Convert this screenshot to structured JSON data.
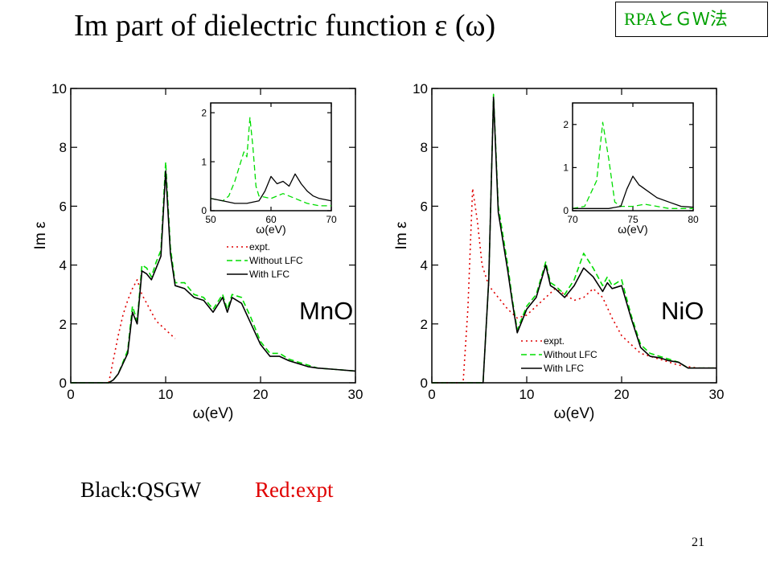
{
  "slide": {
    "title": "Im part of dielectric function ε (ω)",
    "tag": "RPAとＧＷ法",
    "caption_black": "Black:QSGW",
    "caption_red": "Red:expt",
    "page_number": "21"
  },
  "colors": {
    "black": "#000000",
    "green": "#00dd00",
    "red": "#e00000"
  },
  "chart_data": [
    {
      "type": "line",
      "label": "MnO",
      "xlabel": "ω(eV)",
      "ylabel": "Im ε",
      "xlim": [
        0,
        30
      ],
      "ylim": [
        0,
        10
      ],
      "xticks": [
        0,
        10,
        20,
        30
      ],
      "yticks": [
        0,
        2,
        4,
        6,
        8,
        10
      ],
      "legend": [
        "expt.",
        "Without LFC",
        "With LFC"
      ],
      "series": [
        {
          "name": "expt.",
          "style": "dotted",
          "color": "#e00000",
          "x": [
            4,
            4.5,
            5,
            5.5,
            6,
            6.5,
            7,
            7.5,
            8,
            8.5,
            9,
            10,
            11
          ],
          "y": [
            0,
            0.8,
            1.6,
            2.3,
            2.8,
            3.2,
            3.5,
            3.0,
            2.7,
            2.4,
            2.1,
            1.8,
            1.5
          ]
        },
        {
          "name": "Without LFC",
          "style": "dashed",
          "color": "#00dd00",
          "x": [
            0,
            4,
            4.5,
            5,
            6,
            6.5,
            7,
            7.5,
            8,
            8.5,
            9,
            9.5,
            10,
            10.5,
            11,
            12,
            13,
            14,
            15,
            16,
            16.5,
            17,
            18,
            19,
            20,
            21,
            22,
            23,
            24,
            25,
            26,
            28,
            30
          ],
          "y": [
            0,
            0,
            0.1,
            0.3,
            1.1,
            2.6,
            2.1,
            4.0,
            3.9,
            3.6,
            4.1,
            4.5,
            7.5,
            4.6,
            3.4,
            3.4,
            3.0,
            2.9,
            2.5,
            3.0,
            2.5,
            3.0,
            2.9,
            2.2,
            1.4,
            1.0,
            1.0,
            0.8,
            0.7,
            0.6,
            0.5,
            0.45,
            0.4
          ]
        },
        {
          "name": "With LFC",
          "style": "solid",
          "color": "#000000",
          "x": [
            0,
            4,
            4.5,
            5,
            6,
            6.5,
            7,
            7.5,
            8,
            8.5,
            9,
            9.5,
            10,
            10.5,
            11,
            12,
            13,
            14,
            15,
            16,
            16.5,
            17,
            18,
            19,
            20,
            21,
            22,
            23,
            24,
            25,
            26,
            28,
            30
          ],
          "y": [
            0,
            0,
            0.1,
            0.3,
            1.0,
            2.4,
            2.0,
            3.8,
            3.7,
            3.5,
            3.9,
            4.3,
            7.2,
            4.4,
            3.3,
            3.2,
            2.9,
            2.8,
            2.4,
            2.9,
            2.4,
            2.9,
            2.7,
            2.0,
            1.3,
            0.9,
            0.9,
            0.75,
            0.65,
            0.55,
            0.5,
            0.45,
            0.4
          ]
        }
      ],
      "inset": {
        "xlabel": "ω(eV)",
        "xlim": [
          50,
          70
        ],
        "ylim": [
          0,
          2.2
        ],
        "xticks": [
          50,
          60,
          70
        ],
        "yticks": [
          0,
          1,
          2
        ],
        "series": [
          {
            "name": "Without LFC",
            "style": "dashed",
            "color": "#00dd00",
            "x": [
              50,
              52,
              53,
              54,
              55,
              55.5,
              56,
              56.5,
              57,
              57.5,
              58,
              60,
              62,
              64,
              66,
              68,
              70
            ],
            "y": [
              0.25,
              0.2,
              0.3,
              0.6,
              1.0,
              1.2,
              1.1,
              1.9,
              1.3,
              0.5,
              0.3,
              0.25,
              0.35,
              0.25,
              0.15,
              0.1,
              0.1
            ]
          },
          {
            "name": "With LFC",
            "style": "solid",
            "color": "#000000",
            "x": [
              50,
              52,
              54,
              56,
              58,
              59,
              60,
              61,
              62,
              63,
              64,
              65,
              66,
              67,
              68,
              70
            ],
            "y": [
              0.25,
              0.2,
              0.15,
              0.15,
              0.2,
              0.4,
              0.7,
              0.55,
              0.6,
              0.5,
              0.75,
              0.55,
              0.4,
              0.3,
              0.25,
              0.2
            ]
          }
        ]
      }
    },
    {
      "type": "line",
      "label": "NiO",
      "xlabel": "ω(eV)",
      "ylabel": "Im ε",
      "xlim": [
        0,
        30
      ],
      "ylim": [
        0,
        10
      ],
      "xticks": [
        0,
        10,
        20,
        30
      ],
      "yticks": [
        0,
        2,
        4,
        6,
        8,
        10
      ],
      "legend": [
        "expt.",
        "Without LFC",
        "With LFC"
      ],
      "series": [
        {
          "name": "expt.",
          "style": "dotted",
          "color": "#e00000",
          "x": [
            0,
            3.3,
            3.8,
            4.3,
            4.8,
            5.3,
            6,
            7,
            8,
            9,
            10,
            12,
            13,
            14,
            15,
            16,
            17,
            18,
            19,
            20,
            22,
            24,
            26,
            28,
            30
          ],
          "y": [
            0,
            0,
            2.5,
            6.6,
            5.5,
            4.0,
            3.3,
            2.9,
            2.5,
            2.2,
            2.3,
            2.9,
            3.2,
            3.0,
            2.8,
            2.9,
            3.2,
            2.9,
            2.2,
            1.6,
            1.0,
            0.8,
            0.6,
            0.5,
            0.5
          ]
        },
        {
          "name": "Without LFC",
          "style": "dashed",
          "color": "#00dd00",
          "x": [
            0,
            5.4,
            6,
            6.5,
            7,
            7.5,
            8,
            8.5,
            9,
            10,
            11,
            12,
            12.5,
            13,
            14,
            15,
            16,
            17,
            18,
            18.5,
            19,
            20,
            21,
            22,
            23,
            24,
            25,
            26,
            27,
            30
          ],
          "y": [
            0,
            0,
            3.5,
            9.8,
            6.0,
            5.0,
            4.0,
            2.8,
            1.8,
            2.6,
            3.0,
            4.1,
            3.4,
            3.3,
            3.0,
            3.5,
            4.4,
            3.9,
            3.3,
            3.6,
            3.3,
            3.5,
            2.3,
            1.3,
            1.0,
            0.9,
            0.8,
            0.7,
            0.5,
            0.5
          ]
        },
        {
          "name": "With LFC",
          "style": "solid",
          "color": "#000000",
          "x": [
            0,
            5.4,
            6,
            6.5,
            7,
            7.5,
            8,
            8.5,
            9,
            10,
            11,
            12,
            12.5,
            13,
            14,
            15,
            16,
            17,
            18,
            18.5,
            19,
            20,
            21,
            22,
            23,
            24,
            25,
            26,
            27,
            30
          ],
          "y": [
            0,
            0,
            3.5,
            9.7,
            5.8,
            4.8,
            3.8,
            2.7,
            1.7,
            2.5,
            2.9,
            4.0,
            3.3,
            3.2,
            2.9,
            3.3,
            3.9,
            3.6,
            3.1,
            3.4,
            3.2,
            3.3,
            2.2,
            1.2,
            0.9,
            0.85,
            0.75,
            0.7,
            0.5,
            0.5
          ]
        }
      ],
      "inset": {
        "xlabel": "ω(eV)",
        "xlim": [
          70,
          80
        ],
        "ylim": [
          0,
          2.5
        ],
        "xticks": [
          70,
          75,
          80
        ],
        "yticks": [
          0,
          1,
          2
        ],
        "series": [
          {
            "name": "Without LFC",
            "style": "dashed",
            "color": "#00dd00",
            "x": [
              70,
              71,
              72,
              72.5,
              73,
              73.5,
              74,
              75,
              76,
              77,
              78,
              80
            ],
            "y": [
              0.05,
              0.1,
              0.7,
              2.05,
              1.2,
              0.2,
              0.1,
              0.1,
              0.15,
              0.1,
              0.05,
              0.05
            ]
          },
          {
            "name": "With LFC",
            "style": "solid",
            "color": "#000000",
            "x": [
              70,
              72,
              73,
              74,
              74.5,
              75,
              75.5,
              76,
              77,
              78,
              79,
              80
            ],
            "y": [
              0.05,
              0.05,
              0.05,
              0.1,
              0.5,
              0.8,
              0.6,
              0.5,
              0.3,
              0.2,
              0.1,
              0.08
            ]
          }
        ]
      }
    }
  ]
}
